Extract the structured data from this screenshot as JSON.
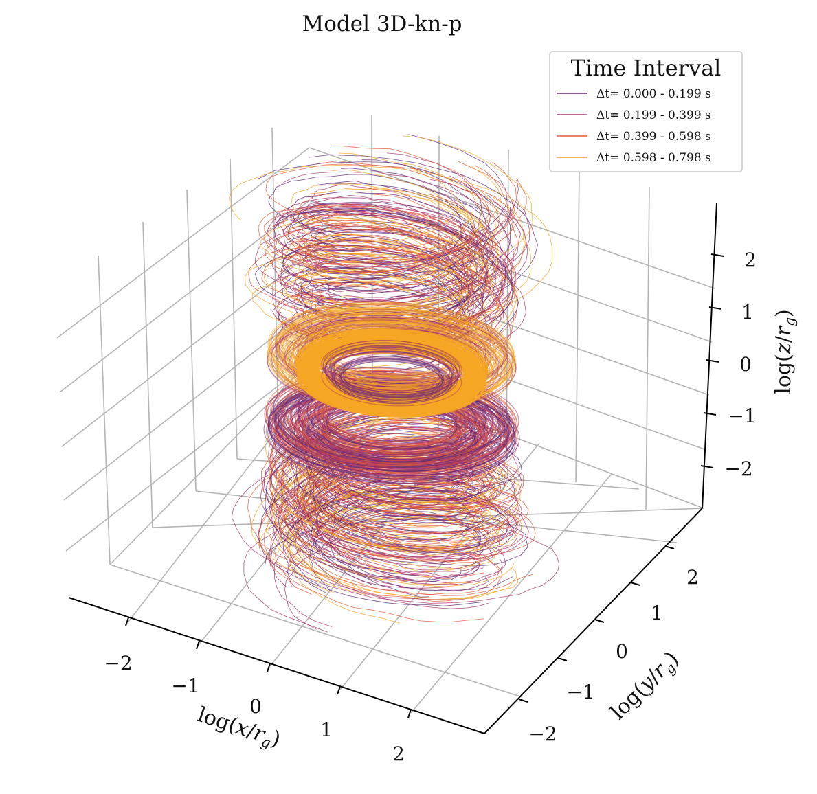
{
  "chart_data": {
    "type": "3d-line",
    "title": "Model 3D-kn-p",
    "xlabel": "log(x/r_g)",
    "ylabel": "log(y/r_g)",
    "zlabel": "log(z/r_g)",
    "x_ticks": [
      "−2",
      "−1",
      "0",
      "1",
      "2"
    ],
    "y_ticks": [
      "−2",
      "−1",
      "0",
      "1",
      "2"
    ],
    "z_ticks": [
      "−2",
      "−1",
      "0",
      "1",
      "2"
    ],
    "xlim": [
      -3,
      3
    ],
    "ylim": [
      -3,
      3
    ],
    "zlim": [
      -3,
      3
    ],
    "legend": {
      "title": "Time Interval",
      "location": "top-right",
      "entries": [
        {
          "label": "Δt= 0.000 - 0.199 s",
          "color": "#5c2a7a"
        },
        {
          "label": "Δt= 0.199 - 0.399 s",
          "color": "#a8326a"
        },
        {
          "label": "Δt= 0.399 - 0.598 s",
          "color": "#e0593a"
        },
        {
          "label": "Δt= 0.598 - 0.798 s",
          "color": "#f5a623"
        }
      ]
    },
    "series": [
      {
        "name": "Δt= 0.000 - 0.199 s",
        "color": "#5c2a7a",
        "torus_rings": [
          {
            "z": -0.9,
            "r_inner": 1.1,
            "r_outer": 2.0
          },
          {
            "z": 0.5,
            "r_inner": 1.0,
            "r_outer": 1.9
          }
        ]
      },
      {
        "name": "Δt= 0.199 - 0.399 s",
        "color": "#a8326a",
        "torus_rings": [
          {
            "z": -0.9,
            "r_inner": 1.1,
            "r_outer": 2.0
          },
          {
            "z": 0.5,
            "r_inner": 1.0,
            "r_outer": 1.9
          }
        ]
      },
      {
        "name": "Δt= 0.399 - 0.598 s",
        "color": "#e0593a",
        "torus_rings": [
          {
            "z": -1.0,
            "r_inner": 1.1,
            "r_outer": 2.0
          }
        ]
      },
      {
        "name": "Δt= 0.598 - 0.798 s",
        "color": "#f5a623",
        "torus_rings": [
          {
            "z": 0.1,
            "r_inner": 1.2,
            "r_outer": 1.5
          }
        ]
      }
    ]
  }
}
